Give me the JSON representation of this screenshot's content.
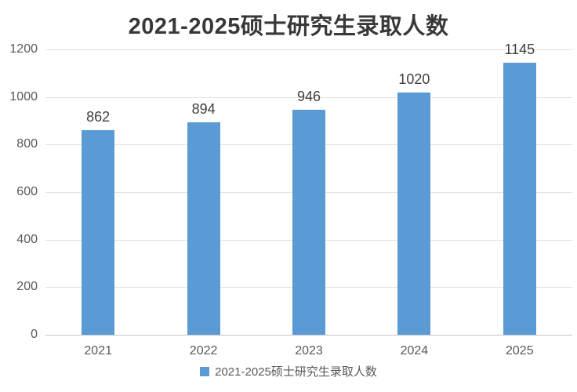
{
  "chart_data": {
    "type": "bar",
    "title": "2021-2025硕士研究生录取人数",
    "categories": [
      "2021",
      "2022",
      "2023",
      "2024",
      "2025"
    ],
    "series": [
      {
        "name": "2021-2025硕士研究生录取人数",
        "values": [
          862,
          894,
          946,
          1020,
          1145
        ],
        "color": "#5B9BD5"
      }
    ],
    "data_labels_shown": true,
    "xlabel": "",
    "ylabel": "",
    "ylim": [
      0,
      1200
    ],
    "yticks": [
      0,
      200,
      400,
      600,
      800,
      1000,
      1200
    ],
    "grid": true,
    "legend_position": "bottom",
    "colors": {
      "bar": "#5B9BD5",
      "title_text": "#383838",
      "tick_text": "#595959",
      "data_label_text": "#3f3f3f",
      "gridline": "#e3e3e3",
      "axis_line": "#c9c9c9",
      "background": "#ffffff"
    }
  }
}
